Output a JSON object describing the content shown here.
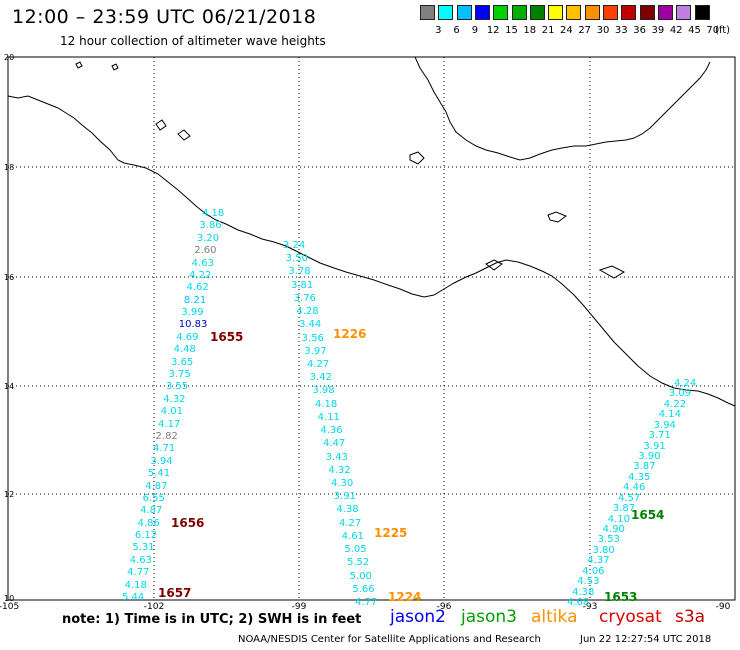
{
  "title": "12:00 – 23:59 UTC 06/21/2018",
  "subtitle": "12 hour collection of altimeter wave heights",
  "legend": {
    "ticks": [
      "3",
      "6",
      "9",
      "12",
      "15",
      "18",
      "21",
      "24",
      "27",
      "30",
      "33",
      "36",
      "39",
      "42",
      "45",
      "70"
    ],
    "unit": "(ft)",
    "colors": [
      "#808080",
      "#00ffff",
      "#00c0ff",
      "#0000ff",
      "#00d000",
      "#00b000",
      "#008000",
      "#ffff00",
      "#ffc000",
      "#ff9000",
      "#ff4000",
      "#c00000",
      "#800000",
      "#a000a0",
      "#c080e0",
      "#000000"
    ]
  },
  "axes": {
    "lat_labels": [
      "20",
      "18",
      "16",
      "14",
      "12",
      "10"
    ],
    "lon_labels": [
      "-105",
      "-102",
      "-99",
      "-96",
      "-93",
      "-90"
    ]
  },
  "tracks": [
    {
      "id": "jason3-west",
      "color": "#00d8e8",
      "values": [
        "4.18",
        "3.86",
        "3.20",
        "2.60",
        "4.63",
        "4.22",
        "4.62",
        "8.21",
        "3.99",
        "10.83",
        "4.69",
        "4.48",
        "3.65",
        "3.75",
        "3.55",
        "4.32",
        "4.01",
        "4.17",
        "2.82",
        "4.71",
        "3.94",
        "5.41",
        "4.87",
        "6.55",
        "4.87",
        "4.86",
        "6.12",
        "5.31",
        "4.63",
        "4.77",
        "4.18",
        "5.44"
      ],
      "colors": [
        "#00d8e8",
        "#00d8e8",
        "#00d8e8",
        "#808080",
        "#00d8e8",
        "#00d8e8",
        "#00d8e8",
        "#00c0ff",
        "#00d8e8",
        "#0000c0",
        "#00d8e8",
        "#00d8e8",
        "#00d8e8",
        "#00d8e8",
        "#00d8e8",
        "#00d8e8",
        "#00d8e8",
        "#00d8e8",
        "#808080",
        "#00d8e8",
        "#00d8e8",
        "#00d8e8",
        "#00d8e8",
        "#00d8e8",
        "#00d8e8",
        "#00d8e8",
        "#00d8e8",
        "#00d8e8",
        "#00d8e8",
        "#00d8e8",
        "#00d8e8",
        "#00d8e8"
      ]
    },
    {
      "id": "altika-middle",
      "color": "#00d8e8",
      "values": [
        "3.24",
        "3.50",
        "3.78",
        "3.81",
        "3.76",
        "4.28",
        "3.44",
        "3.56",
        "3.97",
        "4.27",
        "3.42",
        "3.98",
        "4.18",
        "4.11",
        "4.36",
        "4.47",
        "3.43",
        "4.32",
        "4.30",
        "3.91",
        "4.38",
        "4.27",
        "4.61",
        "5.05",
        "5.52",
        "5.00",
        "5.66",
        "4.77"
      ]
    },
    {
      "id": "jason3-east",
      "color": "#00d8e8",
      "values": [
        "4.24",
        "3.09",
        "4.22",
        "4.14",
        "3.94",
        "3.71",
        "3.91",
        "3.90",
        "3.87",
        "4.35",
        "4.46",
        "4.57",
        "3.87",
        "4.10",
        "4.90",
        "3.53",
        "3.80",
        "4.37",
        "4.06",
        "4.53",
        "4.38",
        "4.68"
      ]
    }
  ],
  "pass_times": [
    {
      "label": "1655",
      "color": "#800000"
    },
    {
      "label": "1656",
      "color": "#800000"
    },
    {
      "label": "1657",
      "color": "#800000"
    },
    {
      "label": "1226",
      "color": "#ff9000"
    },
    {
      "label": "1225",
      "color": "#ff9000"
    },
    {
      "label": "1224",
      "color": "#ff9000"
    },
    {
      "label": "1654",
      "color": "#008000"
    },
    {
      "label": "1653",
      "color": "#008000"
    }
  ],
  "note": "note:  1) Time is in UTC;  2) SWH is in feet",
  "satellites": [
    {
      "label": "jason2",
      "color": "#0000ff"
    },
    {
      "label": "jason3",
      "color": "#00a000"
    },
    {
      "label": "altika",
      "color": "#ff9000"
    },
    {
      "label": "cryosat",
      "color": "#e00000"
    },
    {
      "label": "s3a",
      "color": "#c00000"
    }
  ],
  "credit": "NOAA/NESDIS Center for Satellite Applications and Research",
  "timestamp": "Jun 22 12:27:54 UTC 2018"
}
